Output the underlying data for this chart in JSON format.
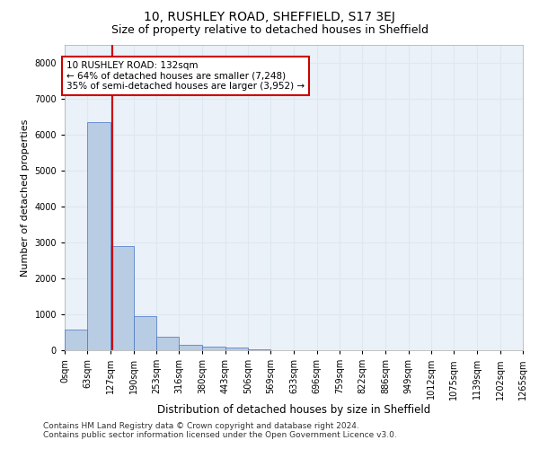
{
  "title1": "10, RUSHLEY ROAD, SHEFFIELD, S17 3EJ",
  "title2": "Size of property relative to detached houses in Sheffield",
  "xlabel": "Distribution of detached houses by size in Sheffield",
  "ylabel": "Number of detached properties",
  "bar_values": [
    580,
    6350,
    2900,
    950,
    370,
    160,
    110,
    65,
    15,
    5,
    3,
    2,
    1,
    1,
    0,
    0,
    0,
    0,
    0,
    0
  ],
  "bin_edges": [
    0,
    63,
    127,
    190,
    253,
    316,
    380,
    443,
    506,
    569,
    633,
    696,
    759,
    822,
    886,
    949,
    1012,
    1075,
    1139,
    1202,
    1265
  ],
  "tick_labels": [
    "0sqm",
    "63sqm",
    "127sqm",
    "190sqm",
    "253sqm",
    "316sqm",
    "380sqm",
    "443sqm",
    "506sqm",
    "569sqm",
    "633sqm",
    "696sqm",
    "759sqm",
    "822sqm",
    "886sqm",
    "949sqm",
    "1012sqm",
    "1075sqm",
    "1139sqm",
    "1202sqm",
    "1265sqm"
  ],
  "bar_color": "#b8cce4",
  "bar_edge_color": "#4472c4",
  "property_line_x": 132,
  "property_line_color": "#cc0000",
  "annotation_text": "10 RUSHLEY ROAD: 132sqm\n← 64% of detached houses are smaller (7,248)\n35% of semi-detached houses are larger (3,952) →",
  "annotation_box_color": "#cc0000",
  "ylim": [
    0,
    8500
  ],
  "yticks": [
    0,
    1000,
    2000,
    3000,
    4000,
    5000,
    6000,
    7000,
    8000
  ],
  "grid_color": "#dde8f0",
  "background_color": "#eaf1f8",
  "footer_line1": "Contains HM Land Registry data © Crown copyright and database right 2024.",
  "footer_line2": "Contains public sector information licensed under the Open Government Licence v3.0.",
  "title1_fontsize": 10,
  "title2_fontsize": 9,
  "xlabel_fontsize": 8.5,
  "ylabel_fontsize": 8,
  "tick_fontsize": 7,
  "annotation_fontsize": 7.5,
  "footer_fontsize": 6.5
}
